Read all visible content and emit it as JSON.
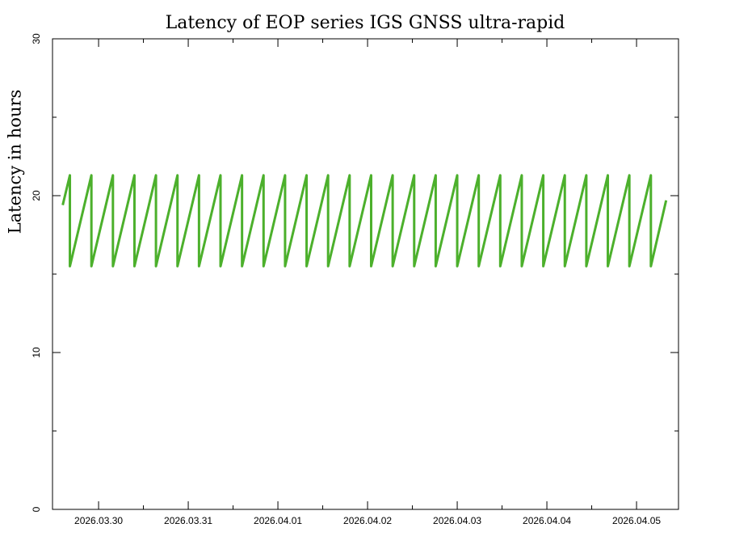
{
  "chart_data": {
    "type": "line",
    "title": "Latency of EOP  series IGS GNSS ultra-rapid",
    "y_label": "Latency in hours",
    "xlim": [
      -0.514,
      6.468
    ],
    "xticks": [
      {
        "value": 0,
        "label": "2026.03.30"
      },
      {
        "value": 1,
        "label": "2026.03.31"
      },
      {
        "value": 2,
        "label": "2026.04.01"
      },
      {
        "value": 3,
        "label": "2026.04.02"
      },
      {
        "value": 4,
        "label": "2026.04.03"
      },
      {
        "value": 5,
        "label": "2026.04.04"
      },
      {
        "value": 6,
        "label": "2026.04.05"
      }
    ],
    "x_minor_ticks": [
      0.5,
      1.5,
      2.5,
      3.5,
      4.5,
      5.5
    ],
    "ylim": [
      0,
      30
    ],
    "yticks": [
      0,
      10,
      20,
      30
    ],
    "y_minor_ticks": [
      5,
      15,
      25
    ],
    "series": [
      {
        "color": "#4cb02c",
        "x": [
          -0.4,
          -0.32,
          -0.32,
          -0.08,
          -0.08,
          0.16,
          0.16,
          0.4,
          0.4,
          0.64,
          0.64,
          0.88,
          0.88,
          1.12,
          1.12,
          1.36,
          1.36,
          1.6,
          1.6,
          1.84,
          1.84,
          2.08,
          2.08,
          2.32,
          2.32,
          2.56,
          2.56,
          2.8,
          2.8,
          3.04,
          3.04,
          3.28,
          3.28,
          3.52,
          3.52,
          3.76,
          3.76,
          4.0,
          4.0,
          4.24,
          4.24,
          4.48,
          4.48,
          4.72,
          4.72,
          4.96,
          4.96,
          5.2,
          5.2,
          5.44,
          5.44,
          5.68,
          5.68,
          5.92,
          5.92,
          6.16,
          6.16,
          6.33
        ],
        "values": [
          19.4,
          21.3,
          15.5,
          21.3,
          15.5,
          21.3,
          15.5,
          21.3,
          15.5,
          21.3,
          15.5,
          21.3,
          15.5,
          21.3,
          15.5,
          21.3,
          15.5,
          21.3,
          15.5,
          21.3,
          15.5,
          21.3,
          15.5,
          21.3,
          15.5,
          21.3,
          15.5,
          21.3,
          15.5,
          21.3,
          15.5,
          21.3,
          15.5,
          21.3,
          15.5,
          21.3,
          15.5,
          21.3,
          15.5,
          21.3,
          15.5,
          21.3,
          15.5,
          21.3,
          15.5,
          21.3,
          15.5,
          21.3,
          15.5,
          21.3,
          15.5,
          21.3,
          15.5,
          21.3,
          15.5,
          21.3,
          15.5,
          19.7
        ]
      }
    ]
  }
}
